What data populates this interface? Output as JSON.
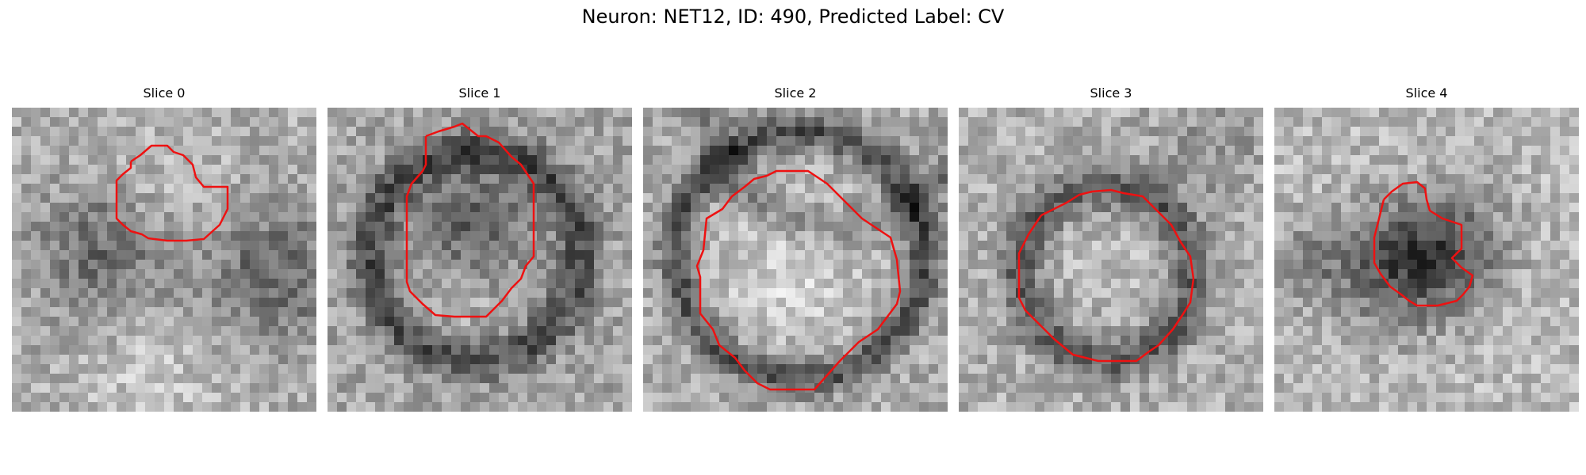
{
  "figure": {
    "title": "Neuron: NET12, ID: 490, Predicted Label: CV",
    "contour_color": "#ee1111",
    "panels": [
      {
        "title": "Slice 0",
        "seed": 11,
        "pattern": "blob"
      },
      {
        "title": "Slice 1",
        "seed": 23,
        "pattern": "ring-dark"
      },
      {
        "title": "Slice 2",
        "seed": 37,
        "pattern": "ring-light"
      },
      {
        "title": "Slice 3",
        "seed": 41,
        "pattern": "ring-mid"
      },
      {
        "title": "Slice 4",
        "seed": 53,
        "pattern": "dark-core"
      }
    ]
  }
}
